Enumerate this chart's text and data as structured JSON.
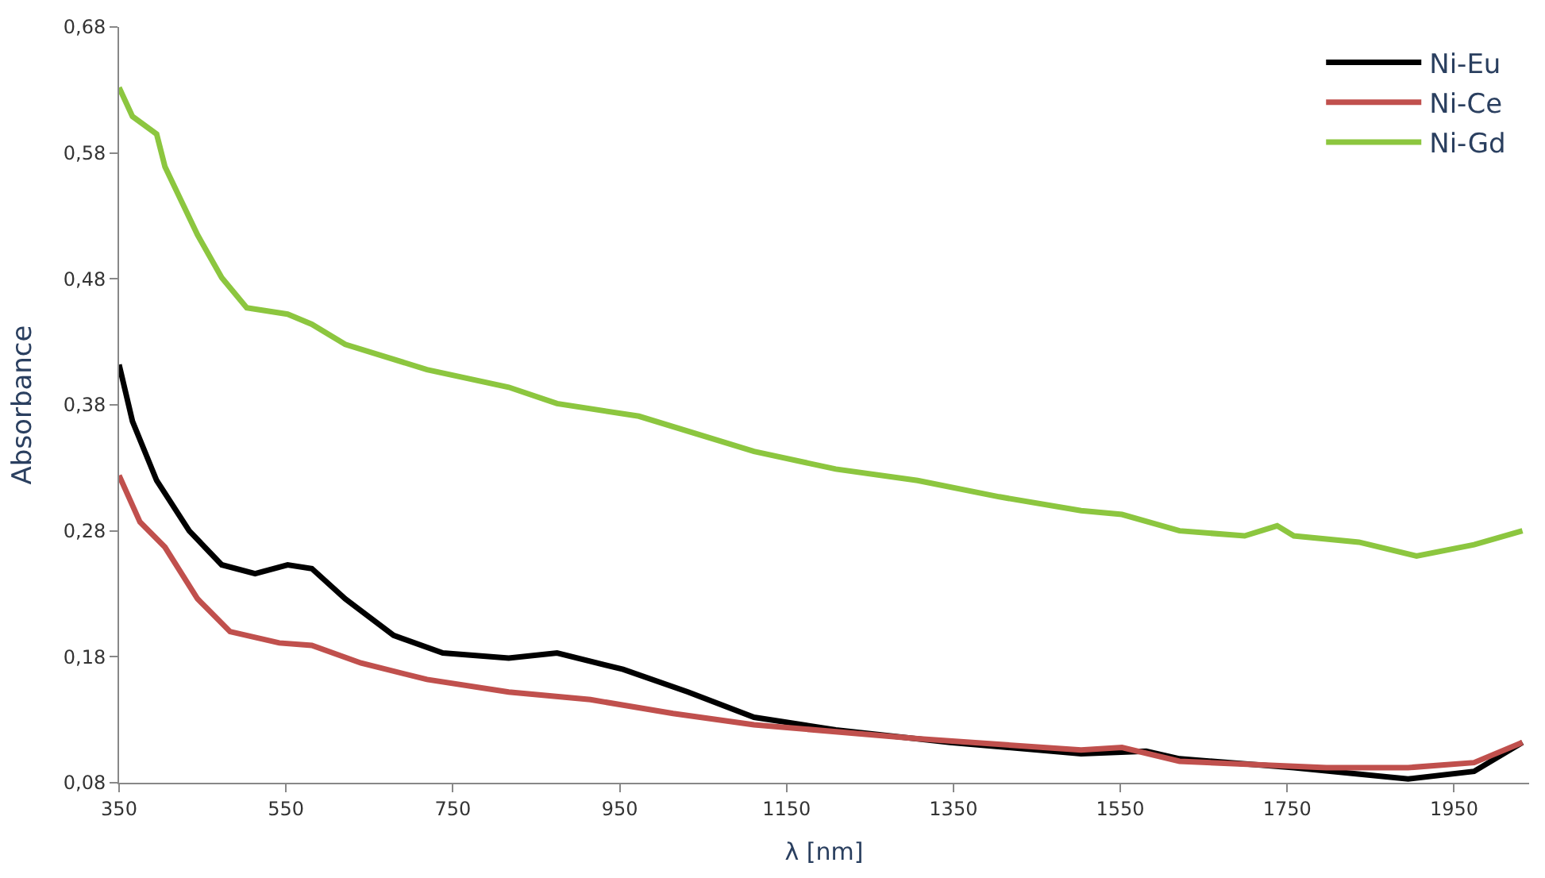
{
  "chart_data": {
    "type": "line",
    "xlabel": "λ [nm]",
    "ylabel": "Absorbance",
    "xlim": [
      350,
      2040
    ],
    "ylim": [
      0.08,
      0.68
    ],
    "xticks": [
      350,
      550,
      750,
      950,
      1150,
      1350,
      1550,
      1750,
      1950
    ],
    "yticks": [
      {
        "value": 0.08,
        "label": "0,08"
      },
      {
        "value": 0.18,
        "label": "0,18"
      },
      {
        "value": 0.28,
        "label": "0,28"
      },
      {
        "value": 0.38,
        "label": "0,38"
      },
      {
        "value": 0.48,
        "label": "0,48"
      },
      {
        "value": 0.58,
        "label": "0,58"
      },
      {
        "value": 0.68,
        "label": "0,68"
      }
    ],
    "grid": false,
    "legend": "top right",
    "marker": "none",
    "line_style": "solid",
    "series": [
      {
        "name": "Ni-Eu",
        "color": "#000000",
        "x": [
          350,
          366,
          395,
          434,
          473,
          513,
          552,
          581,
          621,
          679,
          738,
          817,
          875,
          954,
          1032,
          1111,
          1209,
          1346,
          1503,
          1581,
          1621,
          1758,
          1895,
          1974,
          2032
        ],
        "values": [
          0.412,
          0.367,
          0.32,
          0.28,
          0.253,
          0.246,
          0.253,
          0.25,
          0.226,
          0.197,
          0.183,
          0.179,
          0.183,
          0.17,
          0.152,
          0.132,
          0.122,
          0.112,
          0.103,
          0.105,
          0.099,
          0.092,
          0.083,
          0.089,
          0.112
        ]
      },
      {
        "name": "Ni-Ce",
        "color": "#c0504d",
        "x": [
          350,
          375,
          405,
          444,
          483,
          542,
          581,
          640,
          719,
          817,
          915,
          1014,
          1111,
          1307,
          1503,
          1552,
          1621,
          1797,
          1895,
          1974,
          2032
        ],
        "values": [
          0.324,
          0.287,
          0.267,
          0.226,
          0.2,
          0.191,
          0.189,
          0.175,
          0.162,
          0.152,
          0.146,
          0.135,
          0.126,
          0.115,
          0.106,
          0.108,
          0.097,
          0.092,
          0.092,
          0.096,
          0.112
        ]
      },
      {
        "name": "Ni-Gd",
        "color": "#8cc63f",
        "x": [
          350,
          366,
          395,
          405,
          444,
          473,
          503,
          552,
          581,
          621,
          719,
          817,
          875,
          973,
          1111,
          1209,
          1307,
          1405,
          1503,
          1552,
          1621,
          1699,
          1738,
          1758,
          1836,
          1905,
          1974,
          2032
        ],
        "values": [
          0.632,
          0.609,
          0.595,
          0.569,
          0.515,
          0.481,
          0.457,
          0.452,
          0.444,
          0.428,
          0.408,
          0.394,
          0.381,
          0.371,
          0.343,
          0.329,
          0.32,
          0.307,
          0.296,
          0.293,
          0.28,
          0.276,
          0.284,
          0.276,
          0.271,
          0.26,
          0.269,
          0.28
        ]
      }
    ]
  }
}
